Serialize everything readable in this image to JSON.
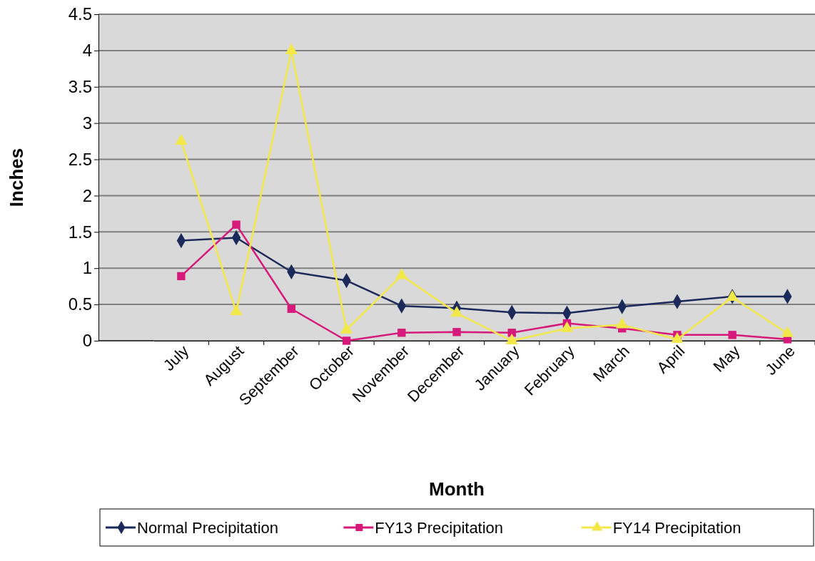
{
  "chart_data": {
    "type": "line",
    "xlabel": "Month",
    "ylabel": "Inches",
    "categories": [
      "July",
      "August",
      "September",
      "October",
      "November",
      "December",
      "January",
      "February",
      "March",
      "April",
      "May",
      "June"
    ],
    "series": [
      {
        "name": "Normal Precipitation",
        "color": "#1b2a5a",
        "marker": "diamond",
        "values": [
          1.38,
          1.42,
          0.95,
          0.83,
          0.48,
          0.45,
          0.39,
          0.38,
          0.47,
          0.54,
          0.61,
          0.61
        ]
      },
      {
        "name": "FY13 Precipitation",
        "color": "#d6197a",
        "marker": "square",
        "values": [
          0.89,
          1.6,
          0.44,
          0.0,
          0.11,
          0.12,
          0.11,
          0.24,
          0.17,
          0.08,
          0.08,
          0.02
        ]
      },
      {
        "name": "FY14 Precipitation",
        "color": "#f2e84a",
        "marker": "triangle",
        "values": [
          2.75,
          0.4,
          4.0,
          0.15,
          0.9,
          0.38,
          0.0,
          0.17,
          0.22,
          0.02,
          0.6,
          0.1
        ]
      }
    ],
    "ylim": [
      0,
      4.5
    ],
    "yticks": [
      0,
      0.5,
      1,
      1.5,
      2,
      2.5,
      3,
      3.5,
      4,
      4.5
    ],
    "grid": "y",
    "legend": "bottom",
    "line_style": "solid"
  }
}
